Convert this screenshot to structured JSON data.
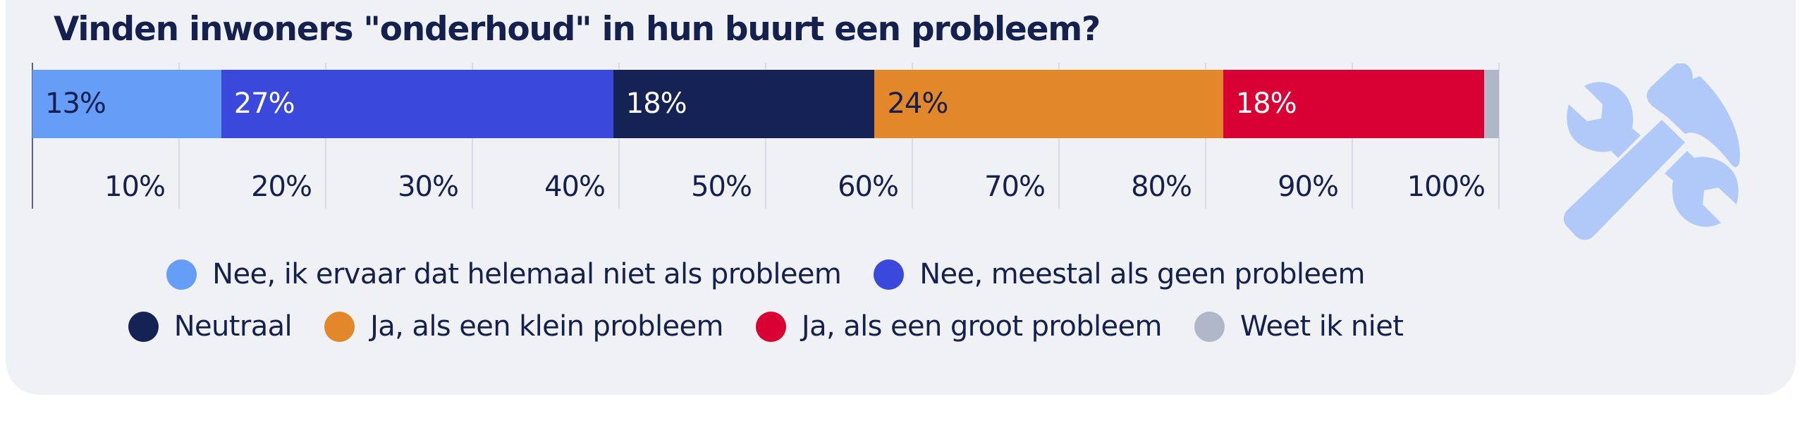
{
  "title": "Vinden inwoners \"onderhoud\" in hun buurt een probleem?",
  "colors": {
    "card_bg": "#f0f1f5",
    "text": "#14214f",
    "gridline": "#d9dbe4",
    "icon": "#b0c9f8"
  },
  "icon": "tools-icon (wrench and hammer)",
  "chart_data": {
    "type": "bar",
    "orientation": "horizontal-stacked-100",
    "title": "Vinden inwoners \"onderhoud\" in hun buurt een probleem?",
    "xlabel": "",
    "ylabel": "",
    "xlim": [
      0,
      100
    ],
    "grid": true,
    "legend_position": "bottom",
    "x_ticks": [
      "10%",
      "20%",
      "30%",
      "40%",
      "50%",
      "60%",
      "70%",
      "80%",
      "90%",
      "100%"
    ],
    "categories": [
      "onderhoud"
    ],
    "series": [
      {
        "name": "Nee, ik ervaar dat helemaal niet als probleem",
        "values": [
          13
        ],
        "label": "13%",
        "color": "#669df7",
        "label_color": "#14214f"
      },
      {
        "name": "Nee, meestal als geen probleem",
        "values": [
          27
        ],
        "label": "27%",
        "color": "#3a48dc",
        "label_color": "#ffffff"
      },
      {
        "name": "Neutraal",
        "values": [
          18
        ],
        "label": "18%",
        "color": "#142254",
        "label_color": "#ffffff"
      },
      {
        "name": "Ja, als een klein probleem",
        "values": [
          24
        ],
        "label": "24%",
        "color": "#e3882a",
        "label_color": "#14214f"
      },
      {
        "name": "Ja, als een groot probleem",
        "values": [
          18
        ],
        "label": "18%",
        "color": "#d90033",
        "label_color": "#ffffff"
      },
      {
        "name": "Weet ik niet",
        "values": [
          1
        ],
        "label": "",
        "color": "#b0b7c9",
        "label_color": "#14214f"
      }
    ]
  },
  "legend": {
    "rows": [
      [
        0,
        1
      ],
      [
        2,
        3,
        4,
        5
      ]
    ]
  }
}
